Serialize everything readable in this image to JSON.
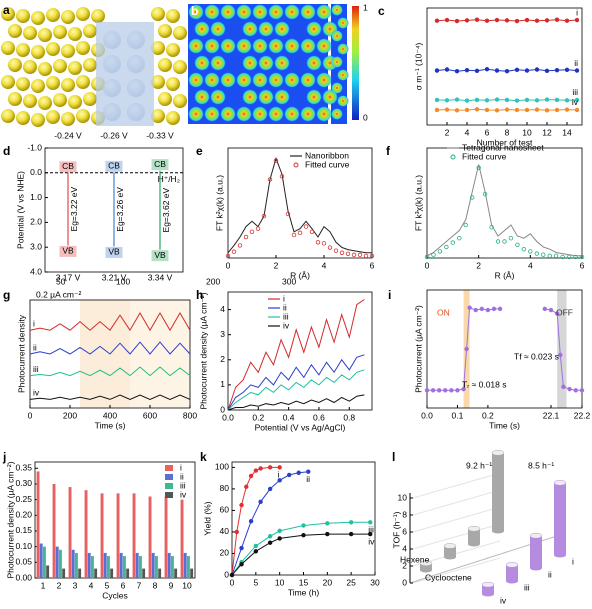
{
  "images": [
    {
      "label": "a"
    },
    {
      "label": "b",
      "colorbar_ticks": [
        0,
        1
      ]
    }
  ],
  "chart_data": [
    {
      "panel": "c",
      "type": "line",
      "xlabel": "Number of test",
      "ylabel": "σ m⁻¹ (10⁻⁴)",
      "x": [
        1,
        2,
        3,
        4,
        5,
        6,
        7,
        8,
        9,
        10,
        11,
        12,
        13,
        14,
        15
      ],
      "xlim": [
        0,
        15.5
      ],
      "xticks": [
        2,
        4,
        6,
        8,
        10,
        12,
        14
      ],
      "ylim": [
        1.3,
        4.8
      ],
      "series": [
        {
          "name": "i",
          "color": "#d42a2a",
          "style": "line+markers",
          "values": [
            4.42,
            4.44,
            4.41,
            4.43,
            4.45,
            4.42,
            4.44,
            4.43,
            4.41,
            4.44,
            4.42,
            4.43,
            4.45,
            4.42,
            4.44
          ]
        },
        {
          "name": "ii",
          "color": "#1f35c0",
          "style": "line+markers",
          "values": [
            2.93,
            2.96,
            2.91,
            2.94,
            2.92,
            2.97,
            2.93,
            2.91,
            2.95,
            2.93,
            2.96,
            2.92,
            2.94,
            2.95,
            2.93
          ]
        },
        {
          "name": "iii",
          "color": "#2ec4b6",
          "style": "line+markers",
          "values": [
            2.05,
            2.04,
            2.06,
            2.03,
            2.05,
            2.04,
            2.06,
            2.05,
            2.03,
            2.05,
            2.04,
            2.06,
            2.05,
            2.04,
            2.05
          ]
        },
        {
          "name": "iv",
          "color": "#f28c28",
          "style": "line+markers",
          "values": [
            1.75,
            1.76,
            1.74,
            1.75,
            1.77,
            1.75,
            1.74,
            1.76,
            1.75,
            1.75,
            1.76,
            1.74,
            1.75,
            1.76,
            1.75
          ]
        }
      ]
    },
    {
      "panel": "d",
      "type": "band",
      "ylabel": "Potential (V vs NHE)",
      "ylim": [
        -1.0,
        4.0
      ],
      "yinvert": true,
      "yticks": [
        {
          "value": -1.0,
          "label": "-1.0"
        },
        {
          "value": 0,
          "label": "0.0"
        },
        {
          "value": 1,
          "label": "1.0"
        },
        {
          "value": 2,
          "label": "2.0"
        },
        {
          "value": 3,
          "label": "3.0"
        },
        {
          "value": 4,
          "label": "4.0"
        }
      ],
      "reference": {
        "value": 0,
        "label": "H⁺/H₂"
      },
      "band_labels": [
        "CB",
        "VB"
      ],
      "series": [
        {
          "color": "#e04848",
          "cb": -0.24,
          "cb_label": "-0.24 V",
          "vb": 3.17,
          "vb_label": "3.17 V",
          "gap": 3.22,
          "gap_label": "Eg=3.22 eV"
        },
        {
          "color": "#4a7fd0",
          "cb": -0.26,
          "cb_label": "-0.26 V",
          "vb": 3.21,
          "vb_label": "3.21 V",
          "gap": 3.26,
          "gap_label": "Eg=3.26 eV"
        },
        {
          "color": "#2aa860",
          "cb": -0.33,
          "cb_label": "-0.33 V",
          "vb": 3.34,
          "vb_label": "3.34 V",
          "gap": 3.62,
          "gap_label": "Eg=3.62 eV"
        }
      ]
    },
    {
      "panel": "e",
      "type": "line",
      "xlabel": "R (Å)",
      "ylabel": "FT k²χ(k) (a.u.)",
      "x": [
        0,
        0.25,
        0.5,
        0.75,
        1,
        1.25,
        1.5,
        1.75,
        2,
        2.25,
        2.5,
        2.75,
        3,
        3.25,
        3.5,
        3.75,
        4,
        4.25,
        4.5,
        4.75,
        5,
        5.25,
        5.5,
        5.75,
        6
      ],
      "xlim": [
        0,
        6
      ],
      "xticks": [
        0,
        2,
        4,
        6
      ],
      "ylim": [
        0,
        1.05
      ],
      "series": [
        {
          "name": "Nanoribbon",
          "color": "#222222",
          "style": "line",
          "values": [
            0.05,
            0.12,
            0.2,
            0.3,
            0.35,
            0.3,
            0.4,
            0.75,
            0.95,
            0.8,
            0.45,
            0.25,
            0.28,
            0.35,
            0.28,
            0.2,
            0.3,
            0.25,
            0.15,
            0.1,
            0.08,
            0.07,
            0.06,
            0.05,
            0.05
          ]
        },
        {
          "name": "Fitted curve",
          "color": "#d83030",
          "style": "markers",
          "values": [
            0.02,
            0.06,
            0.12,
            0.2,
            0.25,
            0.28,
            0.4,
            0.75,
            0.93,
            0.78,
            0.42,
            0.22,
            0.24,
            0.3,
            0.25,
            0.15,
            0.14,
            0.1,
            0.07,
            0.05,
            0.04,
            0.03,
            0.03,
            0.02,
            0.02
          ]
        }
      ]
    },
    {
      "panel": "f",
      "type": "line",
      "xlabel": "R (Å)",
      "ylabel": "FT k³χ(k) (a.u.)",
      "x": [
        0,
        0.25,
        0.5,
        0.75,
        1,
        1.25,
        1.5,
        1.75,
        2,
        2.25,
        2.5,
        2.75,
        3,
        3.25,
        3.5,
        3.75,
        4,
        4.25,
        4.5,
        4.75,
        5,
        5.25,
        5.5,
        5.75,
        6
      ],
      "xlim": [
        0,
        6
      ],
      "xticks": [
        0,
        2,
        4,
        6
      ],
      "ylim": [
        0,
        1
      ],
      "series": [
        {
          "name": "Tetragonal nanosheet",
          "color": "#888888",
          "style": "line",
          "values": [
            0.02,
            0.05,
            0.1,
            0.15,
            0.2,
            0.25,
            0.35,
            0.6,
            0.85,
            0.6,
            0.3,
            0.2,
            0.25,
            0.3,
            0.2,
            0.18,
            0.22,
            0.15,
            0.1,
            0.08,
            0.05,
            0.04,
            0.03,
            0.02,
            0.02
          ]
        },
        {
          "name": "Fitted curve",
          "color": "#20b080",
          "style": "markers",
          "values": [
            0.01,
            0.03,
            0.06,
            0.1,
            0.14,
            0.18,
            0.3,
            0.55,
            0.82,
            0.58,
            0.28,
            0.15,
            0.15,
            0.18,
            0.12,
            0.08,
            0.06,
            0.04,
            0.03,
            0.02,
            0.02,
            0.01,
            0.01,
            0.01,
            0.01
          ]
        }
      ]
    },
    {
      "panel": "g",
      "type": "line",
      "xlabel": "Time (s)",
      "ylabel": "Photocurrent density",
      "x": [
        0,
        50,
        100,
        150,
        200,
        250,
        300,
        350,
        400,
        450,
        500,
        550,
        600,
        650,
        700,
        750,
        800
      ],
      "xlim": [
        0,
        800
      ],
      "xticks": [
        0,
        200,
        400,
        600,
        800
      ],
      "ylim": [
        0,
        1
      ],
      "annotations": [
        "50",
        "100",
        "200",
        "300",
        "0.2 µA cm⁻²"
      ],
      "series": [
        {
          "name": "i",
          "color": "#d42a2a",
          "style": "line",
          "values": [
            0.72,
            0.74,
            0.72,
            0.78,
            0.72,
            0.8,
            0.72,
            0.8,
            0.72,
            0.86,
            0.72,
            0.88,
            0.72,
            0.88,
            0.72,
            0.88,
            0.72
          ]
        },
        {
          "name": "ii",
          "color": "#2a3fd0",
          "style": "line",
          "values": [
            0.5,
            0.52,
            0.5,
            0.55,
            0.5,
            0.56,
            0.5,
            0.57,
            0.5,
            0.6,
            0.5,
            0.61,
            0.5,
            0.61,
            0.5,
            0.6,
            0.5
          ]
        },
        {
          "name": "iii",
          "color": "#20c080",
          "style": "line",
          "values": [
            0.3,
            0.31,
            0.3,
            0.33,
            0.3,
            0.34,
            0.3,
            0.35,
            0.3,
            0.37,
            0.3,
            0.38,
            0.3,
            0.38,
            0.3,
            0.37,
            0.3
          ]
        },
        {
          "name": "iv",
          "color": "#111111",
          "style": "line",
          "values": [
            0.08,
            0.09,
            0.08,
            0.1,
            0.08,
            0.1,
            0.08,
            0.11,
            0.08,
            0.12,
            0.08,
            0.12,
            0.08,
            0.12,
            0.08,
            0.12,
            0.08
          ]
        }
      ]
    },
    {
      "panel": "h",
      "type": "line",
      "xlabel": "Potential (V vs Ag/AgCl)",
      "ylabel": "Photocurrent density (µA cm⁻²)",
      "x": [
        0,
        0.05,
        0.1,
        0.15,
        0.2,
        0.25,
        0.3,
        0.35,
        0.4,
        0.45,
        0.5,
        0.55,
        0.6,
        0.65,
        0.7,
        0.75,
        0.8,
        0.85,
        0.9
      ],
      "xlim": [
        0,
        0.95
      ],
      "xticks": [
        {
          "value": 0,
          "label": "0.0"
        },
        {
          "value": 0.2,
          "label": "0.2"
        },
        {
          "value": 0.4,
          "label": "0.4"
        },
        {
          "value": 0.6,
          "label": "0.6"
        },
        {
          "value": 0.8,
          "label": "0.8"
        }
      ],
      "ylim": [
        0,
        4.7
      ],
      "yticks": [
        0,
        1,
        2,
        3,
        4
      ],
      "series": [
        {
          "name": "i",
          "color": "#d42a2a",
          "style": "line",
          "values": [
            0,
            0.9,
            1.2,
            1.9,
            1.5,
            2.3,
            1.8,
            2.8,
            2.1,
            3.2,
            2.3,
            3.3,
            2.5,
            3.6,
            2.7,
            3.8,
            2.9,
            4.2,
            4.4
          ]
        },
        {
          "name": "ii",
          "color": "#2a3fd0",
          "style": "line",
          "values": [
            0,
            0.5,
            0.7,
            1.0,
            0.9,
            1.3,
            1.0,
            1.5,
            1.2,
            1.7,
            1.3,
            1.8,
            1.4,
            1.9,
            1.5,
            2.0,
            1.6,
            2.1,
            2.2
          ]
        },
        {
          "name": "iii",
          "color": "#20c0a0",
          "style": "line",
          "values": [
            0,
            0.3,
            0.5,
            0.7,
            0.6,
            0.9,
            0.7,
            1.0,
            0.8,
            1.1,
            0.9,
            1.2,
            1.0,
            1.3,
            1.1,
            1.4,
            1.2,
            1.5,
            1.6
          ]
        },
        {
          "name": "iv",
          "color": "#111111",
          "style": "line",
          "values": [
            0,
            0.1,
            0.1,
            0.2,
            0.15,
            0.25,
            0.2,
            0.3,
            0.22,
            0.35,
            0.25,
            0.4,
            0.3,
            0.45,
            0.3,
            0.5,
            0.35,
            0.55,
            0.6
          ]
        }
      ]
    },
    {
      "panel": "i",
      "type": "line",
      "xlabel": "Time (s)",
      "ylabel": "Photocurrent (µA cm⁻²)",
      "x": [
        0.0,
        0.02,
        0.04,
        0.06,
        0.08,
        0.1,
        0.12,
        0.13,
        0.14,
        0.16,
        0.18,
        0.2,
        0.22,
        0.24,
        22.08,
        22.1,
        22.12,
        22.13,
        22.14,
        22.16,
        22.18,
        22.2
      ],
      "xlim": [
        0,
        22.2
      ],
      "xbreak": [
        0.28,
        22.0
      ],
      "xticks": [
        {
          "value": 0,
          "label": "0.0"
        },
        0.1,
        0.2,
        22.1,
        22.2
      ],
      "ylim": [
        0,
        1
      ],
      "annotations": [
        "ON",
        "OFF",
        "Tᵣ ≈ 0.018 s",
        "Tf ≈ 0.023 s"
      ],
      "series": [
        {
          "name": "photocurrent",
          "color": "#a070e0",
          "style": "line+markers",
          "values": [
            0.15,
            0.15,
            0.15,
            0.15,
            0.15,
            0.15,
            0.16,
            0.5,
            0.85,
            0.83,
            0.84,
            0.83,
            0.84,
            0.84,
            0.84,
            0.83,
            0.8,
            0.45,
            0.18,
            0.16,
            0.15,
            0.15
          ]
        }
      ]
    },
    {
      "panel": "j",
      "type": "bar",
      "xlabel": "Cycles",
      "ylabel": "Photocurrent density (µA cm⁻²)",
      "categories": [
        "1",
        "2",
        "3",
        "4",
        "5",
        "6",
        "7",
        "8",
        "9",
        "10"
      ],
      "ylim": [
        0,
        0.37
      ],
      "yticks": [
        {
          "value": 0,
          "label": "0.00"
        },
        0.05,
        {
          "value": 0.1,
          "label": "0.10"
        },
        0.15,
        {
          "value": 0.2,
          "label": "0.20"
        },
        0.25,
        {
          "value": 0.3,
          "label": "0.30"
        },
        0.35
      ],
      "series": [
        {
          "name": "i",
          "color": "#e86060",
          "values": [
            0.34,
            0.3,
            0.29,
            0.28,
            0.27,
            0.27,
            0.27,
            0.26,
            0.26,
            0.25
          ]
        },
        {
          "name": "ii",
          "color": "#5a6fd0",
          "values": [
            0.11,
            0.1,
            0.09,
            0.08,
            0.08,
            0.08,
            0.08,
            0.08,
            0.08,
            0.08
          ]
        },
        {
          "name": "iii",
          "color": "#40b890",
          "values": [
            0.1,
            0.09,
            0.08,
            0.07,
            0.07,
            0.07,
            0.07,
            0.07,
            0.07,
            0.07
          ]
        },
        {
          "name": "iv",
          "color": "#555555",
          "values": [
            0.04,
            0.03,
            0.03,
            0.03,
            0.03,
            0.03,
            0.03,
            0.03,
            0.03,
            0.03
          ]
        }
      ]
    },
    {
      "panel": "k",
      "type": "line",
      "xlabel": "Time (h)",
      "ylabel": "Yield (%)",
      "xlim": [
        0,
        30
      ],
      "xticks": [
        0,
        5,
        10,
        15,
        20,
        25,
        30
      ],
      "ylim": [
        0,
        105
      ],
      "yticks": [
        0,
        20,
        40,
        60,
        80,
        100
      ],
      "series": [
        {
          "name": "i",
          "color": "#e03030",
          "style": "line+markers",
          "x": [
            0,
            1,
            2,
            3,
            4,
            5,
            6,
            8,
            10
          ],
          "values": [
            0,
            40,
            65,
            82,
            92,
            97,
            99,
            100,
            100
          ]
        },
        {
          "name": "ii",
          "color": "#2a3fd0",
          "style": "line+markers",
          "x": [
            0,
            2,
            4,
            6,
            8,
            10,
            12,
            14,
            16
          ],
          "values": [
            0,
            25,
            50,
            68,
            80,
            88,
            93,
            95,
            96
          ]
        },
        {
          "name": "iii",
          "color": "#20c0a0",
          "style": "line+markers",
          "x": [
            0,
            2,
            5,
            8,
            10,
            15,
            20,
            25,
            29
          ],
          "values": [
            0,
            12,
            27,
            36,
            41,
            46,
            48,
            49,
            49
          ]
        },
        {
          "name": "iv",
          "color": "#111111",
          "style": "line+markers",
          "x": [
            0,
            2,
            5,
            8,
            10,
            15,
            20,
            25,
            29
          ],
          "values": [
            0,
            10,
            22,
            30,
            34,
            37,
            38,
            38,
            38
          ]
        }
      ]
    },
    {
      "panel": "l",
      "type": "bar3d",
      "ylabel": "TOF (h⁻¹)",
      "categories": [
        "i",
        "ii",
        "iii",
        "iv"
      ],
      "ylim": [
        0,
        10
      ],
      "yticks": [
        0,
        2,
        4,
        6,
        8,
        10
      ],
      "annotations": [
        "9.2 h⁻¹",
        "8.5 h⁻¹"
      ],
      "series": [
        {
          "name": "Hexene",
          "color": "#a8a8a8",
          "values": [
            9.2,
            1.8,
            1.3,
            0.8
          ]
        },
        {
          "name": "Cyclooctene",
          "color": "#b58be0",
          "values": [
            8.5,
            3.8,
            1.9,
            1.1
          ]
        }
      ]
    }
  ]
}
